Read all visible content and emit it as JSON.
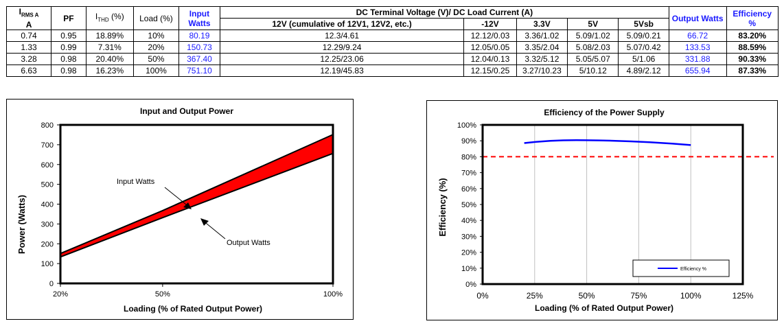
{
  "table": {
    "headers": {
      "irms": "I",
      "irms_sub": "RMS A",
      "irms_unit": "A",
      "pf": "PF",
      "ithd": "I",
      "ithd_sub": "THD",
      "ithd_suffix": " (%)",
      "load": "Load (%)",
      "input_watts": "Input Watts",
      "dc_group": "DC Terminal Voltage (V)/ DC Load Current (A)",
      "v12": "12V (cumulative of 12V1, 12V2, etc.)",
      "vneg12": "-12V",
      "v33": "3.3V",
      "v5": "5V",
      "v5sb": "5Vsb",
      "output_watts": "Output Watts",
      "efficiency": "Efficiency %"
    },
    "rows": [
      {
        "irms": "0.74",
        "pf": "0.95",
        "ithd": "18.89%",
        "load": "10%",
        "input": "80.19",
        "v12": "12.3/4.61",
        "vneg12": "12.12/0.03",
        "v33": "3.36/1.02",
        "v5": "5.09/1.02",
        "v5sb": "5.09/0.21",
        "output": "66.72",
        "eff": "83.20%"
      },
      {
        "irms": "1.33",
        "pf": "0.99",
        "ithd": "7.31%",
        "load": "20%",
        "input": "150.73",
        "v12": "12.29/9.24",
        "vneg12": "12.05/0.05",
        "v33": "3.35/2.04",
        "v5": "5.08/2.03",
        "v5sb": "5.07/0.42",
        "output": "133.53",
        "eff": "88.59%"
      },
      {
        "irms": "3.28",
        "pf": "0.98",
        "ithd": "20.40%",
        "load": "50%",
        "input": "367.40",
        "v12": "12.25/23.06",
        "vneg12": "12.04/0.13",
        "v33": "3.32/5.12",
        "v5": "5.05/5.07",
        "v5sb": "5/1.06",
        "output": "331.88",
        "eff": "90.33%"
      },
      {
        "irms": "6.63",
        "pf": "0.98",
        "ithd": "16.23%",
        "load": "100%",
        "input": "751.10",
        "v12": "12.19/45.83",
        "vneg12": "12.15/0.25",
        "v33": "3.27/10.23",
        "v5": "5/10.12",
        "v5sb": "4.89/2.12",
        "output": "655.94",
        "eff": "87.33%"
      }
    ]
  },
  "colors": {
    "blue_text": "#1a1aff",
    "fill_red": "#ff0000",
    "eff_line": "#0000ff",
    "threshold": "#ff0000"
  },
  "chart_data": [
    {
      "type": "area",
      "title": "Input and Output Power",
      "xlabel": "Loading (% of Rated Output Power)",
      "ylabel": "Power (Watts)",
      "x_categories": [
        "20%",
        "50%",
        "100%"
      ],
      "y_ticks": [
        "0",
        "100",
        "200",
        "300",
        "400",
        "500",
        "600",
        "700",
        "800"
      ],
      "ylim": [
        0,
        800
      ],
      "series": [
        {
          "name": "Input Watts",
          "values": [
            150.73,
            367.4,
            751.1
          ]
        },
        {
          "name": "Output Watts",
          "values": [
            133.53,
            331.88,
            655.94
          ]
        }
      ],
      "annotations": [
        "Input Watts",
        "Output Watts"
      ],
      "fill_between": true
    },
    {
      "type": "line",
      "title": "Efficiency of the Power Supply",
      "xlabel": "Loading (% of Rated Output Power)",
      "ylabel": "Efficiency (%)",
      "x_ticks": [
        "0%",
        "25%",
        "50%",
        "75%",
        "100%",
        "125%"
      ],
      "xlim": [
        0,
        125
      ],
      "y_ticks": [
        "0%",
        "10%",
        "20%",
        "30%",
        "40%",
        "50%",
        "60%",
        "70%",
        "80%",
        "90%",
        "100%"
      ],
      "ylim": [
        0,
        100
      ],
      "series": [
        {
          "name": "Efficiency %",
          "x": [
            20,
            50,
            100
          ],
          "values": [
            88.59,
            90.33,
            87.33
          ]
        }
      ],
      "threshold": {
        "value": 80,
        "style": "dashed"
      },
      "legend": "bottom-right",
      "grid": true
    }
  ]
}
